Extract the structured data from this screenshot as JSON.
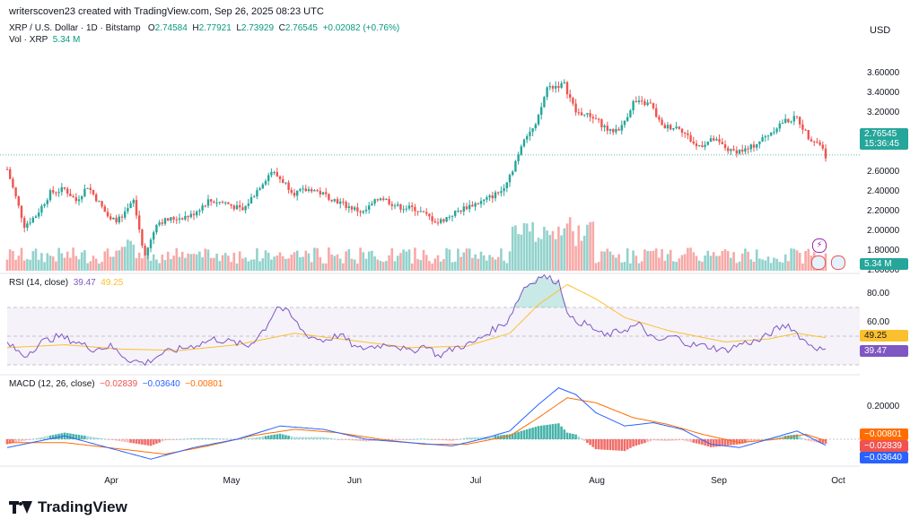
{
  "header": {
    "author_line": "writerscoven23 created with TradingView.com, Sep 26, 2025 08:23 UTC",
    "symbol": "XRP / U.S. Dollar · 1D · Bitstamp",
    "o_label": "O",
    "o": "2.74584",
    "h_label": "H",
    "h": "2.77921",
    "l_label": "L",
    "l": "2.73929",
    "c_label": "C",
    "c": "2.76545",
    "change": "+0.02082 (+0.76%)",
    "vol_label": "Vol · XRP",
    "vol_value": "5.34 M",
    "currency": "USD"
  },
  "rsi": {
    "label": "RSI (14, close)",
    "value": "39.47",
    "ma_value": "49.25"
  },
  "macd": {
    "label": "MACD (12, 26, close)",
    "hist": "−0.02839",
    "macd": "−0.03640",
    "signal": "−0.00801"
  },
  "tags": {
    "price": "2.76545",
    "countdown": "15:36:45",
    "volume": "5.34 M",
    "rsi_ma": "49.25",
    "rsi": "39.47",
    "macd_signal": "−0.00801",
    "macd_hist": "−0.02839",
    "macd_line": "−0.03640"
  },
  "brand": {
    "name": "TradingView"
  },
  "colors": {
    "up": "#26a69a",
    "down": "#ef5350",
    "rsi": "#7e57c2",
    "rsi_ma": "#fbc02d",
    "macd": "#2962ff",
    "signal": "#ff6d00"
  },
  "chart_data": {
    "type": "candlestick",
    "price_axis": {
      "ticks": [
        "3.60000",
        "3.40000",
        "3.20000",
        "3.00000",
        "2.60000",
        "2.40000",
        "2.20000",
        "2.00000",
        "1.80000",
        "1.60000"
      ],
      "values": [
        3.6,
        3.4,
        3.2,
        3.0,
        2.6,
        2.4,
        2.2,
        2.0,
        1.8,
        1.6
      ]
    },
    "x_ticks": [
      "Apr",
      "May",
      "Jun",
      "Jul",
      "Aug",
      "Sep",
      "Oct"
    ],
    "rsi_axis": {
      "ticks": [
        "80.00",
        "60.00"
      ],
      "values": [
        80,
        60
      ]
    },
    "macd_axis": {
      "ticks": [
        "0.20000"
      ],
      "values": [
        0.2
      ]
    },
    "price_anchors": [
      [
        0,
        2.62
      ],
      [
        6,
        2.05
      ],
      [
        10,
        2.15
      ],
      [
        15,
        2.38
      ],
      [
        20,
        2.42
      ],
      [
        24,
        2.3
      ],
      [
        28,
        2.45
      ],
      [
        32,
        2.28
      ],
      [
        36,
        2.1
      ],
      [
        40,
        2.12
      ],
      [
        44,
        2.3
      ],
      [
        48,
        1.72
      ],
      [
        52,
        2.08
      ],
      [
        58,
        2.12
      ],
      [
        64,
        2.15
      ],
      [
        70,
        2.3
      ],
      [
        76,
        2.28
      ],
      [
        82,
        2.2
      ],
      [
        88,
        2.45
      ],
      [
        92,
        2.6
      ],
      [
        96,
        2.5
      ],
      [
        100,
        2.38
      ],
      [
        106,
        2.42
      ],
      [
        112,
        2.34
      ],
      [
        118,
        2.25
      ],
      [
        124,
        2.18
      ],
      [
        130,
        2.34
      ],
      [
        136,
        2.24
      ],
      [
        142,
        2.22
      ],
      [
        150,
        2.08
      ],
      [
        156,
        2.18
      ],
      [
        160,
        2.24
      ],
      [
        166,
        2.3
      ],
      [
        172,
        2.4
      ],
      [
        176,
        2.62
      ],
      [
        180,
        2.95
      ],
      [
        184,
        3.05
      ],
      [
        188,
        3.45
      ],
      [
        194,
        3.48
      ],
      [
        198,
        3.2
      ],
      [
        204,
        3.15
      ],
      [
        210,
        3.0
      ],
      [
        214,
        3.05
      ],
      [
        218,
        3.3
      ],
      [
        224,
        3.28
      ],
      [
        228,
        3.05
      ],
      [
        234,
        3.05
      ],
      [
        240,
        2.85
      ],
      [
        246,
        2.92
      ],
      [
        252,
        2.8
      ],
      [
        258,
        2.82
      ],
      [
        264,
        2.95
      ],
      [
        270,
        3.1
      ],
      [
        275,
        3.14
      ],
      [
        279,
        2.95
      ],
      [
        283,
        2.88
      ],
      [
        285,
        2.76
      ]
    ],
    "rsi_anchors": [
      [
        0,
        45
      ],
      [
        6,
        36
      ],
      [
        12,
        46
      ],
      [
        18,
        50
      ],
      [
        24,
        46
      ],
      [
        30,
        41
      ],
      [
        36,
        43
      ],
      [
        42,
        34
      ],
      [
        48,
        31
      ],
      [
        54,
        38
      ],
      [
        60,
        41
      ],
      [
        66,
        44
      ],
      [
        72,
        48
      ],
      [
        78,
        46
      ],
      [
        84,
        43
      ],
      [
        90,
        56
      ],
      [
        94,
        71
      ],
      [
        98,
        66
      ],
      [
        104,
        51
      ],
      [
        110,
        47
      ],
      [
        116,
        51
      ],
      [
        122,
        41
      ],
      [
        128,
        43
      ],
      [
        134,
        45
      ],
      [
        140,
        39
      ],
      [
        146,
        44
      ],
      [
        150,
        36
      ],
      [
        156,
        42
      ],
      [
        162,
        45
      ],
      [
        168,
        53
      ],
      [
        174,
        60
      ],
      [
        180,
        84
      ],
      [
        186,
        92
      ],
      [
        192,
        88
      ],
      [
        196,
        62
      ],
      [
        202,
        58
      ],
      [
        208,
        50
      ],
      [
        214,
        54
      ],
      [
        220,
        58
      ],
      [
        226,
        46
      ],
      [
        232,
        50
      ],
      [
        238,
        44
      ],
      [
        244,
        43
      ],
      [
        250,
        40
      ],
      [
        256,
        45
      ],
      [
        262,
        47
      ],
      [
        268,
        55
      ],
      [
        272,
        58
      ],
      [
        278,
        46
      ],
      [
        282,
        42
      ],
      [
        285,
        39
      ]
    ],
    "rsi_ma_anchors": [
      [
        0,
        42
      ],
      [
        20,
        44
      ],
      [
        40,
        41
      ],
      [
        60,
        40
      ],
      [
        80,
        44
      ],
      [
        100,
        52
      ],
      [
        120,
        47
      ],
      [
        140,
        42
      ],
      [
        160,
        43
      ],
      [
        175,
        52
      ],
      [
        185,
        72
      ],
      [
        195,
        86
      ],
      [
        205,
        76
      ],
      [
        215,
        63
      ],
      [
        230,
        54
      ],
      [
        250,
        46
      ],
      [
        265,
        48
      ],
      [
        275,
        52
      ],
      [
        285,
        49
      ]
    ],
    "macd_line_anchors": [
      [
        0,
        -0.05
      ],
      [
        20,
        0.02
      ],
      [
        35,
        -0.05
      ],
      [
        50,
        -0.12
      ],
      [
        65,
        -0.05
      ],
      [
        80,
        0.0
      ],
      [
        95,
        0.08
      ],
      [
        110,
        0.06
      ],
      [
        125,
        0.0
      ],
      [
        140,
        -0.02
      ],
      [
        155,
        -0.04
      ],
      [
        165,
        0.0
      ],
      [
        175,
        0.05
      ],
      [
        185,
        0.21
      ],
      [
        192,
        0.31
      ],
      [
        198,
        0.27
      ],
      [
        205,
        0.16
      ],
      [
        215,
        0.08
      ],
      [
        225,
        0.1
      ],
      [
        235,
        0.06
      ],
      [
        245,
        -0.03
      ],
      [
        255,
        -0.05
      ],
      [
        265,
        0.0
      ],
      [
        275,
        0.05
      ],
      [
        285,
        -0.036
      ]
    ],
    "macd_signal_anchors": [
      [
        0,
        -0.02
      ],
      [
        20,
        -0.02
      ],
      [
        40,
        -0.06
      ],
      [
        55,
        -0.09
      ],
      [
        70,
        -0.04
      ],
      [
        85,
        0.02
      ],
      [
        100,
        0.06
      ],
      [
        115,
        0.04
      ],
      [
        130,
        0.0
      ],
      [
        145,
        -0.03
      ],
      [
        160,
        -0.03
      ],
      [
        175,
        0.02
      ],
      [
        185,
        0.13
      ],
      [
        195,
        0.25
      ],
      [
        205,
        0.22
      ],
      [
        218,
        0.13
      ],
      [
        230,
        0.09
      ],
      [
        242,
        0.03
      ],
      [
        255,
        -0.02
      ],
      [
        268,
        0.0
      ],
      [
        278,
        0.03
      ],
      [
        285,
        -0.008
      ]
    ]
  }
}
